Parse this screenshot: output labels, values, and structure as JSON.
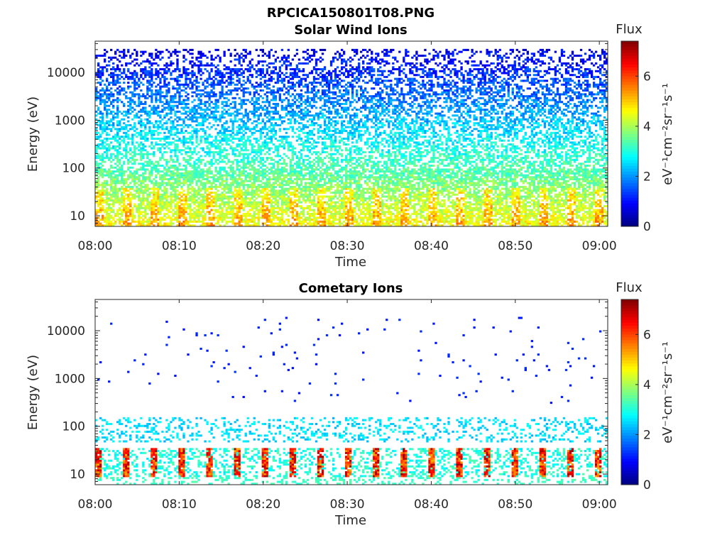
{
  "figure": {
    "title": "RPCICA150801T08.PNG"
  },
  "chart_data": [
    {
      "type": "heatmap",
      "title": "Solar Wind Ions",
      "xlabel": "Time",
      "ylabel": "Energy (eV)",
      "x_ticks": [
        "08:00",
        "08:10",
        "08:20",
        "08:30",
        "08:40",
        "08:50",
        "09:00"
      ],
      "x_range": [
        "08:00",
        "09:01"
      ],
      "y_scale": "log",
      "y_ticks": [
        "10",
        "100",
        "1000",
        "10000"
      ],
      "y_range": [
        6,
        45000
      ],
      "colorbar": {
        "label": "Flux",
        "unit": "eV⁻¹cm⁻²sr⁻¹s⁻¹",
        "ticks": [
          "0",
          "2",
          "4",
          "6"
        ],
        "range": [
          0,
          7.4
        ],
        "colormap": "jet"
      },
      "distribution": "dense broad spread from ~6 eV to ~30000 eV; flux ~1 at high energy rising to ~4-5 near 10-30 eV"
    },
    {
      "type": "heatmap",
      "title": "Cometary Ions",
      "xlabel": "Time",
      "ylabel": "Energy (eV)",
      "x_ticks": [
        "08:00",
        "08:10",
        "08:20",
        "08:30",
        "08:40",
        "08:50",
        "09:00"
      ],
      "x_range": [
        "08:00",
        "09:01"
      ],
      "y_scale": "log",
      "y_ticks": [
        "10",
        "100",
        "1000",
        "10000"
      ],
      "y_range": [
        6,
        45000
      ],
      "colorbar": {
        "label": "Flux",
        "unit": "eV⁻¹cm⁻²sr⁻¹s⁻¹",
        "ticks": [
          "0",
          "2",
          "4",
          "6"
        ],
        "range": [
          0,
          7.4
        ],
        "colormap": "jet"
      },
      "distribution": "periodic bursts (~3.3 min period) of high flux (~5-7) between ~10 and ~35 eV; band of ~2-3 flux near 50-150 eV; sparse isolated points of ~1 at higher energies"
    }
  ]
}
